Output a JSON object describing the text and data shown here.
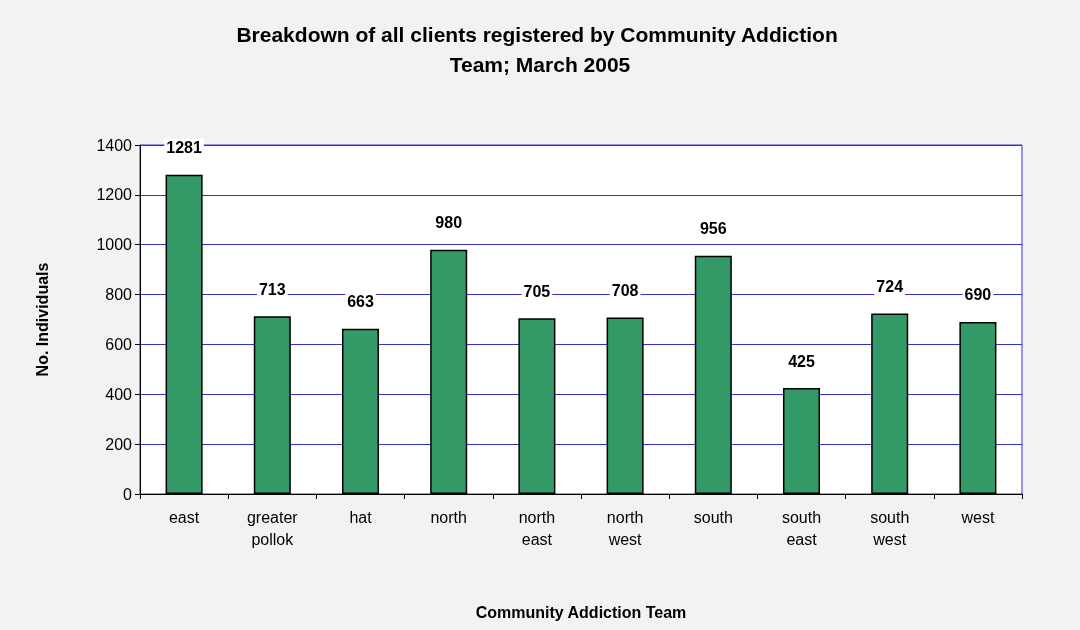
{
  "chart_data": {
    "type": "bar",
    "title": "Breakdown of all clients registered by Community Addiction Team; March 2005",
    "xlabel": "Community Addiction Team",
    "ylabel": "No. Individuals",
    "categories": [
      "east",
      "greater\npollok",
      "hat",
      "north",
      "north\neast",
      "north\nwest",
      "south",
      "south\neast",
      "south\nwest",
      "west"
    ],
    "values": [
      1281,
      713,
      663,
      980,
      705,
      708,
      956,
      425,
      724,
      690
    ],
    "color": "#339966",
    "ylim": [
      0,
      1400
    ],
    "yticks": [
      0,
      200,
      400,
      600,
      800,
      1000,
      1200,
      1400
    ],
    "grid": "y",
    "data_labels": true
  }
}
